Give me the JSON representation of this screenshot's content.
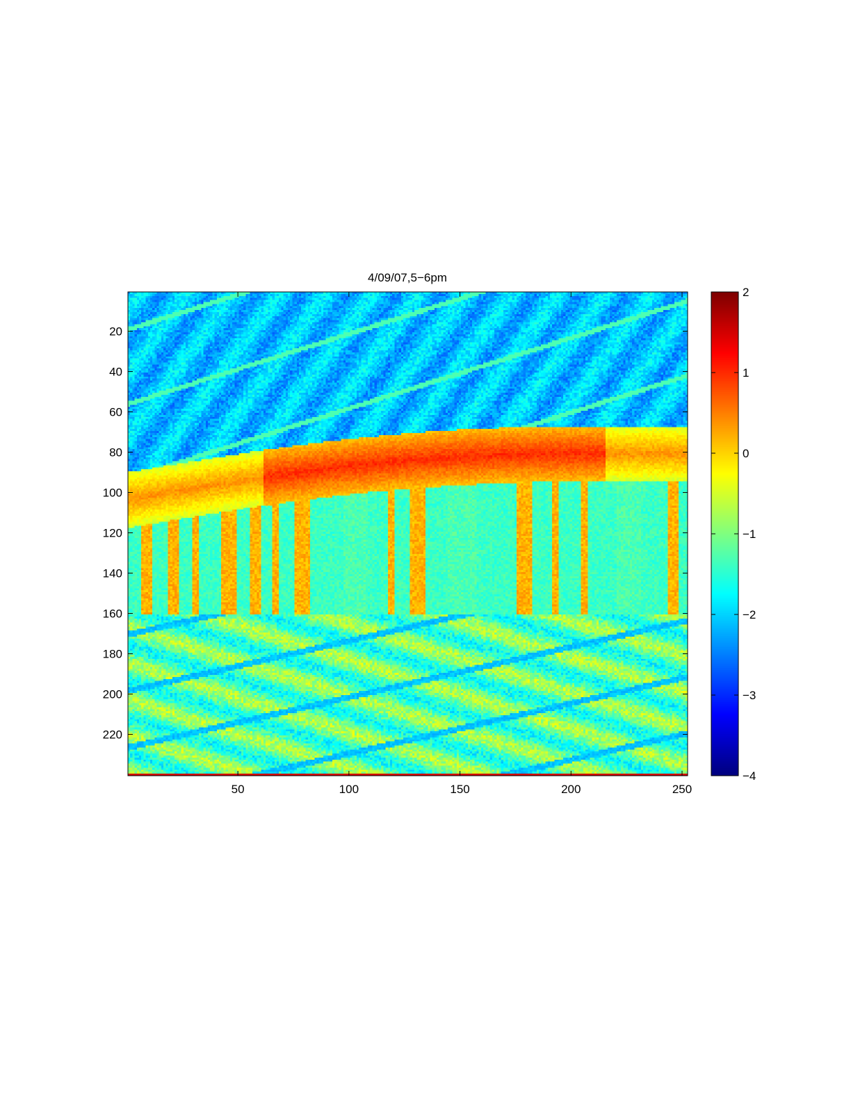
{
  "chart_data": {
    "type": "heatmap",
    "title": "4/09/07,5−6pm",
    "xlabel": "",
    "ylabel": "",
    "xlim": [
      0.5,
      252.5
    ],
    "ylim": [
      0.5,
      240.5
    ],
    "y_direction": "reversed",
    "x_ticks": [
      50,
      100,
      150,
      200,
      250
    ],
    "y_ticks": [
      20,
      40,
      60,
      80,
      100,
      120,
      140,
      160,
      180,
      200,
      220
    ],
    "colormap": "jet",
    "clim": [
      -4,
      2
    ],
    "colorbar": {
      "location": "right",
      "ticks": [
        2,
        1,
        0,
        -1,
        -2,
        -3,
        -4
      ],
      "tick_labels": [
        "2",
        "1",
        "0",
        "−1",
        "−2",
        "−3",
        "−4"
      ]
    },
    "grid": false
  }
}
